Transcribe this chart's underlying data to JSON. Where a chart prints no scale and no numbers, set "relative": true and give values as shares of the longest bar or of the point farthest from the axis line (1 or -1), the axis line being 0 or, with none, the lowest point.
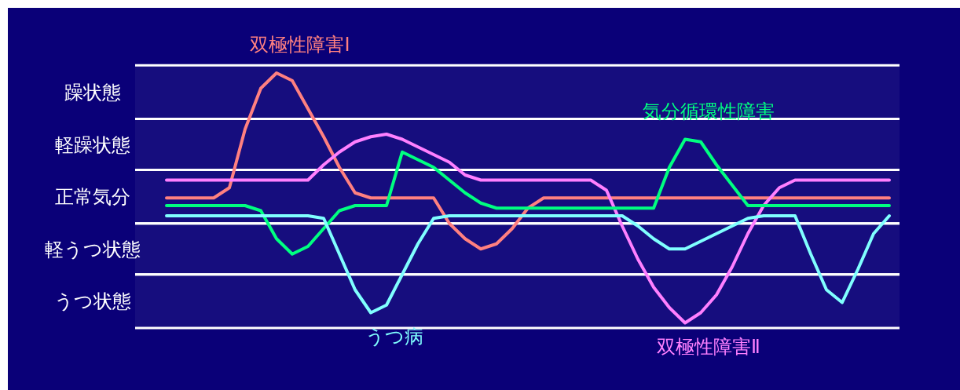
{
  "chart_data": {
    "type": "line",
    "relative": true,
    "categories": [
      null,
      null,
      null,
      null,
      null,
      null,
      null,
      null,
      null,
      null,
      null,
      null,
      null,
      null,
      null,
      null,
      null,
      null,
      null,
      null,
      null,
      null,
      null,
      null,
      null,
      null,
      null,
      null,
      null,
      null,
      null,
      null,
      null,
      null,
      null,
      null,
      null,
      null,
      null,
      null,
      null,
      null,
      null,
      null,
      null,
      null,
      null
    ],
    "series": [
      {
        "name": "双極性障害Ⅰ",
        "color": "#ff8080",
        "values": [
          0.51,
          0.51,
          0.51,
          0.51,
          0.55,
          0.78,
          0.94,
          1,
          0.97,
          0.86,
          0.75,
          0.63,
          0.53,
          0.51,
          0.51,
          0.51,
          0.51,
          0.51,
          0.41,
          0.35,
          0.31,
          0.33,
          0.39,
          0.47,
          0.51,
          0.51,
          0.51,
          0.51,
          0.51,
          0.51,
          0.51,
          0.51,
          0.51,
          0.51,
          0.51,
          0.51,
          0.51,
          0.51,
          0.51,
          0.51,
          0.51,
          0.51,
          0.51,
          0.51,
          0.51,
          0.51,
          0.51
        ]
      },
      {
        "name": "双極性障害Ⅱ",
        "color": "#ff80ff",
        "values": [
          0.58,
          0.58,
          0.58,
          0.58,
          0.58,
          0.58,
          0.58,
          0.58,
          0.58,
          0.58,
          0.64,
          0.69,
          0.73,
          0.75,
          0.76,
          0.74,
          0.71,
          0.68,
          0.65,
          0.6,
          0.58,
          0.58,
          0.58,
          0.58,
          0.58,
          0.58,
          0.58,
          0.58,
          0.54,
          0.4,
          0.27,
          0.16,
          0.08,
          0.02,
          0.06,
          0.13,
          0.24,
          0.37,
          0.48,
          0.55,
          0.58,
          0.58,
          0.58,
          0.58,
          0.58,
          0.58,
          0.58
        ]
      },
      {
        "name": "気分循環性障害",
        "color": "#00ff80",
        "values": [
          0.48,
          0.48,
          0.48,
          0.48,
          0.48,
          0.48,
          0.46,
          0.35,
          0.29,
          0.32,
          0.39,
          0.46,
          0.48,
          0.48,
          0.48,
          0.69,
          0.66,
          0.63,
          0.58,
          0.53,
          0.49,
          0.47,
          0.47,
          0.47,
          0.47,
          0.47,
          0.47,
          0.47,
          0.47,
          0.47,
          0.47,
          0.47,
          0.63,
          0.74,
          0.73,
          0.64,
          0.56,
          0.48,
          0.48,
          0.48,
          0.48,
          0.48,
          0.48,
          0.48,
          0.48,
          0.48,
          0.48
        ]
      },
      {
        "name": "うつ病",
        "color": "#80ffff",
        "values": [
          0.44,
          0.44,
          0.44,
          0.44,
          0.44,
          0.44,
          0.44,
          0.44,
          0.44,
          0.44,
          0.43,
          0.29,
          0.15,
          0.06,
          0.09,
          0.21,
          0.33,
          0.43,
          0.44,
          0.44,
          0.44,
          0.44,
          0.44,
          0.44,
          0.44,
          0.44,
          0.44,
          0.44,
          0.44,
          0.44,
          0.4,
          0.35,
          0.31,
          0.31,
          0.34,
          0.37,
          0.4,
          0.43,
          0.44,
          0.44,
          0.44,
          0.29,
          0.15,
          0.1,
          0.23,
          0.37,
          0.44
        ]
      }
    ],
    "bands": [
      {
        "axis": "y",
        "from": 0,
        "to": 0.21,
        "label": "うつ状態",
        "color": "#ffffff"
      },
      {
        "axis": "y",
        "from": 0.21,
        "to": 0.41,
        "label": "軽うつ状態",
        "color": "#ffffff"
      },
      {
        "axis": "y",
        "from": 0.41,
        "to": 0.62,
        "label": "正常気分",
        "color": "#ffffff"
      },
      {
        "axis": "y",
        "from": 0.62,
        "to": 0.82,
        "label": "軽躁状態",
        "color": "#ffffff"
      },
      {
        "axis": "y",
        "from": 0.82,
        "to": 1.03,
        "label": "躁状態",
        "color": "#ffffff"
      }
    ]
  }
}
